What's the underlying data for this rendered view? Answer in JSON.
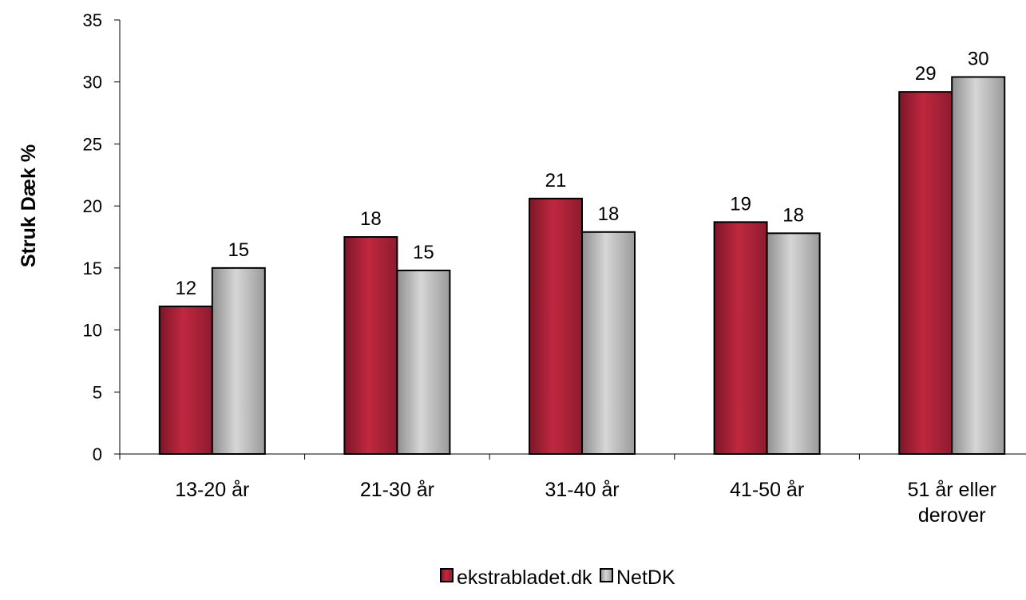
{
  "chart_data": {
    "type": "bar",
    "title": "",
    "xlabel": "",
    "ylabel": "Struk Dæk %",
    "ylim": [
      0,
      35
    ],
    "yticks": [
      0,
      5,
      10,
      15,
      20,
      25,
      30,
      35
    ],
    "grid": false,
    "legend_position": "bottom",
    "categories": [
      [
        "13-20 år"
      ],
      [
        "21-30 år"
      ],
      [
        "31-40 år"
      ],
      [
        "41-50 år"
      ],
      [
        "51 år eller",
        "derover"
      ]
    ],
    "series": [
      {
        "name": "ekstrabladet.dk",
        "color": "#A8213A",
        "values": [
          11.9,
          17.5,
          20.6,
          18.7,
          29.2
        ],
        "labels": [
          "12",
          "18",
          "21",
          "19",
          "29"
        ]
      },
      {
        "name": "NetDK",
        "color": "#B9B9B9",
        "values": [
          15.0,
          14.8,
          17.9,
          17.8,
          30.4
        ],
        "labels": [
          "15",
          "15",
          "18",
          "18",
          "30"
        ]
      }
    ]
  }
}
